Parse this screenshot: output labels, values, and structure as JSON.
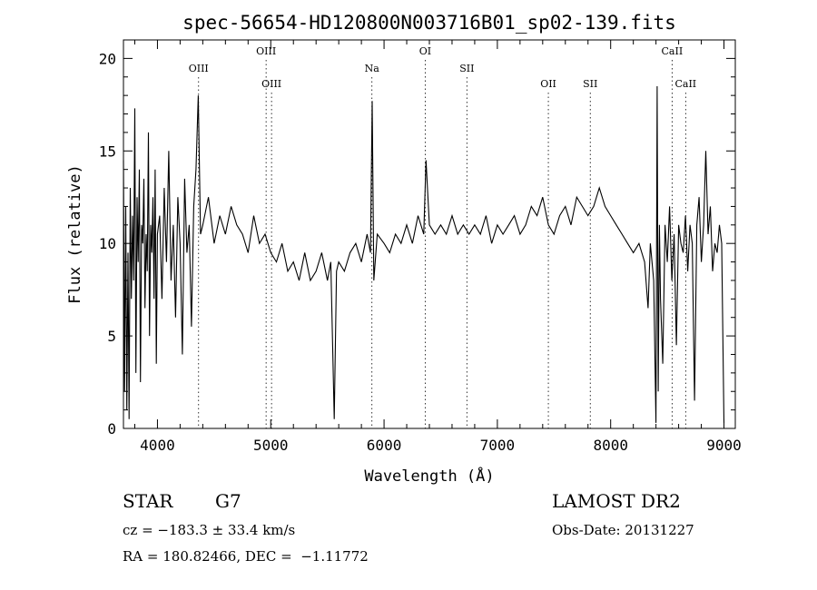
{
  "chart_data": {
    "type": "line",
    "title": "spec-56654-HD120800N003716B01_sp02-139.fits",
    "xlabel": "Wavelength (Å)",
    "ylabel": "Flux (relative)",
    "xlim": [
      3700,
      9100
    ],
    "ylim": [
      0,
      21
    ],
    "xticks": [
      4000,
      5000,
      6000,
      7000,
      8000,
      9000
    ],
    "yticks": [
      0,
      5,
      10,
      15,
      20
    ],
    "grid": false,
    "line_color": "#000000",
    "series": [
      {
        "x": [
          3700,
          3710,
          3720,
          3730,
          3740,
          3750,
          3760,
          3770,
          3780,
          3790,
          3800,
          3810,
          3820,
          3830,
          3840,
          3850,
          3860,
          3870,
          3880,
          3890,
          3900,
          3910,
          3920,
          3930,
          3940,
          3950,
          3960,
          3970,
          3980,
          3990,
          4000,
          4020,
          4040,
          4060,
          4080,
          4100,
          4120,
          4140,
          4160,
          4180,
          4200,
          4220,
          4240,
          4260,
          4280,
          4300,
          4320,
          4340,
          4360,
          4380,
          4400,
          4450,
          4500,
          4550,
          4600,
          4650,
          4700,
          4750,
          4800,
          4850,
          4900,
          4950,
          5000,
          5050,
          5100,
          5150,
          5200,
          5250,
          5300,
          5350,
          5400,
          5450,
          5500,
          5530,
          5560,
          5580,
          5600,
          5650,
          5700,
          5750,
          5800,
          5850,
          5880,
          5895,
          5910,
          5940,
          6000,
          6050,
          6100,
          6150,
          6200,
          6250,
          6300,
          6350,
          6370,
          6400,
          6450,
          6500,
          6550,
          6600,
          6650,
          6700,
          6750,
          6800,
          6850,
          6900,
          6950,
          7000,
          7050,
          7100,
          7150,
          7200,
          7250,
          7300,
          7350,
          7400,
          7450,
          7500,
          7550,
          7600,
          7650,
          7700,
          7750,
          7800,
          7850,
          7900,
          7950,
          8000,
          8050,
          8100,
          8150,
          8200,
          8250,
          8300,
          8330,
          8350,
          8380,
          8400,
          8410,
          8420,
          8430,
          8440,
          8460,
          8480,
          8500,
          8520,
          8540,
          8560,
          8580,
          8600,
          8620,
          8640,
          8660,
          8680,
          8700,
          8720,
          8740,
          8760,
          8780,
          8800,
          8820,
          8840,
          8860,
          8880,
          8900,
          8920,
          8940,
          8960,
          8980,
          9000
        ],
        "values": [
          14.5,
          2.0,
          12.0,
          1.0,
          9.5,
          0.5,
          13.0,
          7.0,
          11.5,
          8.0,
          17.3,
          3.0,
          12.5,
          9.0,
          14.0,
          2.5,
          11.0,
          10.0,
          13.5,
          6.5,
          10.5,
          8.5,
          16.0,
          5.0,
          11.0,
          9.5,
          12.5,
          7.0,
          14.0,
          3.5,
          10.5,
          11.5,
          7.0,
          13.0,
          9.0,
          15.0,
          8.0,
          11.0,
          6.0,
          12.5,
          10.0,
          4.0,
          13.5,
          9.5,
          11.0,
          5.5,
          12.0,
          14.0,
          18.0,
          10.5,
          11.0,
          12.5,
          10.0,
          11.5,
          10.5,
          12.0,
          11.0,
          10.5,
          9.5,
          11.5,
          10.0,
          10.5,
          9.5,
          9.0,
          10.0,
          8.5,
          9.0,
          8.0,
          9.5,
          8.0,
          8.5,
          9.5,
          8.0,
          9.0,
          0.5,
          8.5,
          9.0,
          8.5,
          9.5,
          10.0,
          9.0,
          10.5,
          9.5,
          17.7,
          8.0,
          10.5,
          10.0,
          9.5,
          10.5,
          10.0,
          11.0,
          10.0,
          11.5,
          10.5,
          14.5,
          11.0,
          10.5,
          11.0,
          10.5,
          11.5,
          10.5,
          11.0,
          10.5,
          11.0,
          10.5,
          11.5,
          10.0,
          11.0,
          10.5,
          11.0,
          11.5,
          10.5,
          11.0,
          12.0,
          11.5,
          12.5,
          11.0,
          10.5,
          11.5,
          12.0,
          11.0,
          12.5,
          12.0,
          11.5,
          12.0,
          13.0,
          12.0,
          11.5,
          11.0,
          10.5,
          10.0,
          9.5,
          10.0,
          9.0,
          6.5,
          10.0,
          8.0,
          0.3,
          18.5,
          2.0,
          11.0,
          7.0,
          3.5,
          11.0,
          9.0,
          12.0,
          8.0,
          10.5,
          4.5,
          11.0,
          10.0,
          9.5,
          11.5,
          8.5,
          11.0,
          10.0,
          1.5,
          11.0,
          12.5,
          9.0,
          11.0,
          15.0,
          10.5,
          12.0,
          8.5,
          10.0,
          9.5,
          11.0,
          10.0,
          0.3
        ]
      }
    ],
    "annotations": [
      {
        "label": "OIII",
        "x": 4363,
        "row": 1
      },
      {
        "label": "OIII",
        "x": 4959,
        "row": 0
      },
      {
        "label": "OIII",
        "x": 5007,
        "row": 2
      },
      {
        "label": "Na",
        "x": 5893,
        "row": 1
      },
      {
        "label": "OI",
        "x": 6363,
        "row": 0
      },
      {
        "label": "SII",
        "x": 6731,
        "row": 1
      },
      {
        "label": "OII",
        "x": 7450,
        "row": 2
      },
      {
        "label": "SII",
        "x": 7820,
        "row": 2
      },
      {
        "label": "CaII",
        "x": 8542,
        "row": 0
      },
      {
        "label": "CaII",
        "x": 8662,
        "row": 2
      }
    ]
  },
  "info": {
    "class_type": "STAR",
    "subclass": "G7",
    "cz": "cz = −183.3 ± 33.4 km/s",
    "coords": "RA = 180.82466, DEC =  −1.11772",
    "survey": "LAMOST DR2",
    "obs_date": "Obs-Date: 20131227"
  }
}
